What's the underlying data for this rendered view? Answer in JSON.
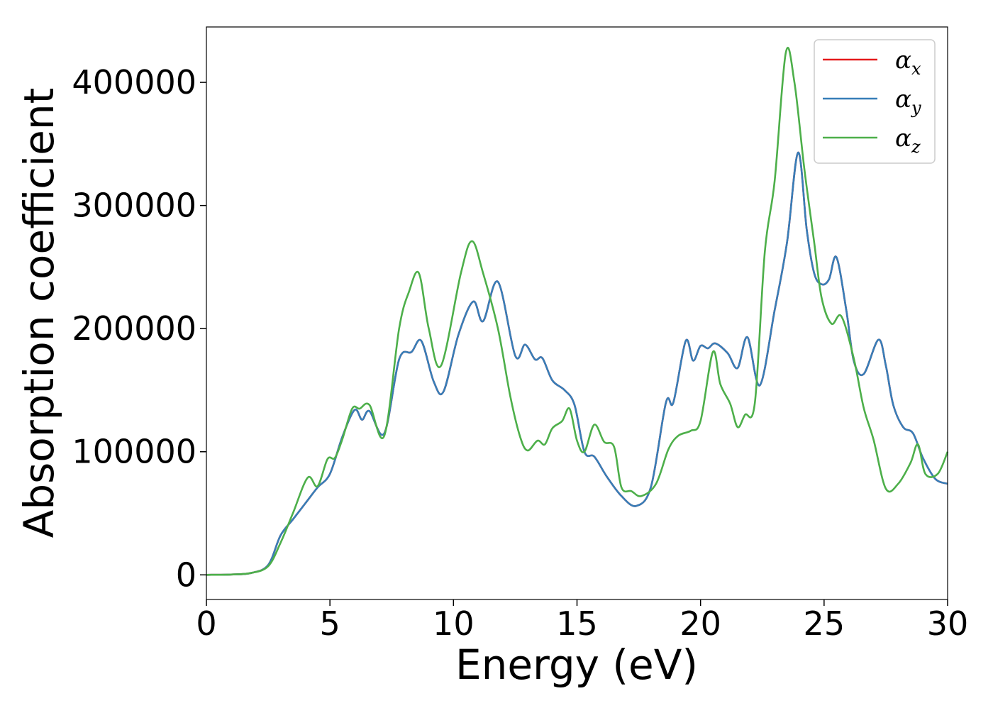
{
  "chart_data": {
    "type": "line",
    "title": "",
    "xlabel": "Energy (eV)",
    "ylabel": "Absorption coefficient",
    "xlim": [
      0,
      30
    ],
    "ylim": [
      -20000,
      445000
    ],
    "xticks": [
      0,
      5,
      10,
      15,
      20,
      25,
      30
    ],
    "yticks": [
      0,
      100000,
      200000,
      300000,
      400000
    ],
    "grid": false,
    "legend_position": "top-right",
    "series": [
      {
        "name": "α_x",
        "label_main": "α",
        "label_sub": "x",
        "color": "#e41a1c",
        "points": [
          [
            0,
            0
          ],
          [
            1,
            300
          ],
          [
            1.8,
            1500
          ],
          [
            2.5,
            8000
          ],
          [
            3.0,
            32000
          ],
          [
            3.5,
            45000
          ],
          [
            4.0,
            58000
          ],
          [
            4.5,
            71000
          ],
          [
            5.0,
            82000
          ],
          [
            5.5,
            112000
          ],
          [
            6.0,
            134000
          ],
          [
            6.3,
            126000
          ],
          [
            6.6,
            133000
          ],
          [
            7.2,
            115000
          ],
          [
            7.8,
            175000
          ],
          [
            8.3,
            181000
          ],
          [
            8.7,
            190000
          ],
          [
            9.2,
            157000
          ],
          [
            9.6,
            149000
          ],
          [
            10.2,
            195000
          ],
          [
            10.8,
            222000
          ],
          [
            11.2,
            206000
          ],
          [
            11.8,
            238000
          ],
          [
            12.5,
            178000
          ],
          [
            12.9,
            187000
          ],
          [
            13.3,
            175000
          ],
          [
            13.6,
            176000
          ],
          [
            14.0,
            158000
          ],
          [
            14.5,
            150000
          ],
          [
            14.9,
            138000
          ],
          [
            15.3,
            100000
          ],
          [
            15.7,
            96000
          ],
          [
            16.2,
            80000
          ],
          [
            16.8,
            64000
          ],
          [
            17.4,
            56000
          ],
          [
            18.0,
            72000
          ],
          [
            18.6,
            140000
          ],
          [
            18.9,
            140000
          ],
          [
            19.4,
            190000
          ],
          [
            19.7,
            174000
          ],
          [
            20.0,
            186000
          ],
          [
            20.3,
            184000
          ],
          [
            20.6,
            188000
          ],
          [
            21.1,
            180000
          ],
          [
            21.5,
            168000
          ],
          [
            21.9,
            193000
          ],
          [
            22.4,
            154000
          ],
          [
            23.0,
            215000
          ],
          [
            23.5,
            270000
          ],
          [
            23.95,
            343000
          ],
          [
            24.3,
            280000
          ],
          [
            24.6,
            245000
          ],
          [
            24.9,
            236000
          ],
          [
            25.2,
            240000
          ],
          [
            25.5,
            258000
          ],
          [
            25.9,
            215000
          ],
          [
            26.2,
            174000
          ],
          [
            26.6,
            163000
          ],
          [
            27.2,
            191000
          ],
          [
            27.5,
            170000
          ],
          [
            27.8,
            138000
          ],
          [
            28.2,
            120000
          ],
          [
            28.6,
            115000
          ],
          [
            29.0,
            95000
          ],
          [
            29.5,
            78000
          ],
          [
            30,
            74000
          ]
        ]
      },
      {
        "name": "α_y",
        "label_main": "α",
        "label_sub": "y",
        "color": "#377eb8",
        "points": [
          [
            0,
            0
          ],
          [
            1,
            300
          ],
          [
            1.8,
            1500
          ],
          [
            2.5,
            8000
          ],
          [
            3.0,
            32000
          ],
          [
            3.5,
            45000
          ],
          [
            4.0,
            58000
          ],
          [
            4.5,
            71000
          ],
          [
            5.0,
            82000
          ],
          [
            5.5,
            112000
          ],
          [
            6.0,
            134000
          ],
          [
            6.3,
            126000
          ],
          [
            6.6,
            133000
          ],
          [
            7.2,
            115000
          ],
          [
            7.8,
            175000
          ],
          [
            8.3,
            181000
          ],
          [
            8.7,
            190000
          ],
          [
            9.2,
            157000
          ],
          [
            9.6,
            149000
          ],
          [
            10.2,
            195000
          ],
          [
            10.8,
            222000
          ],
          [
            11.2,
            206000
          ],
          [
            11.8,
            238000
          ],
          [
            12.5,
            178000
          ],
          [
            12.9,
            187000
          ],
          [
            13.3,
            175000
          ],
          [
            13.6,
            176000
          ],
          [
            14.0,
            158000
          ],
          [
            14.5,
            150000
          ],
          [
            14.9,
            138000
          ],
          [
            15.3,
            100000
          ],
          [
            15.7,
            96000
          ],
          [
            16.2,
            80000
          ],
          [
            16.8,
            64000
          ],
          [
            17.4,
            56000
          ],
          [
            18.0,
            72000
          ],
          [
            18.6,
            140000
          ],
          [
            18.9,
            140000
          ],
          [
            19.4,
            190000
          ],
          [
            19.7,
            174000
          ],
          [
            20.0,
            186000
          ],
          [
            20.3,
            184000
          ],
          [
            20.6,
            188000
          ],
          [
            21.1,
            180000
          ],
          [
            21.5,
            168000
          ],
          [
            21.9,
            193000
          ],
          [
            22.4,
            154000
          ],
          [
            23.0,
            215000
          ],
          [
            23.5,
            270000
          ],
          [
            23.95,
            343000
          ],
          [
            24.3,
            280000
          ],
          [
            24.6,
            245000
          ],
          [
            24.9,
            236000
          ],
          [
            25.2,
            240000
          ],
          [
            25.5,
            258000
          ],
          [
            25.9,
            215000
          ],
          [
            26.2,
            174000
          ],
          [
            26.6,
            163000
          ],
          [
            27.2,
            191000
          ],
          [
            27.5,
            170000
          ],
          [
            27.8,
            138000
          ],
          [
            28.2,
            120000
          ],
          [
            28.6,
            115000
          ],
          [
            29.0,
            95000
          ],
          [
            29.5,
            78000
          ],
          [
            30,
            74000
          ]
        ]
      },
      {
        "name": "α_z",
        "label_main": "α",
        "label_sub": "z",
        "color": "#4daf4a",
        "points": [
          [
            0,
            0
          ],
          [
            1,
            300
          ],
          [
            1.8,
            1500
          ],
          [
            2.5,
            7000
          ],
          [
            3.0,
            26000
          ],
          [
            3.5,
            50000
          ],
          [
            4.1,
            79000
          ],
          [
            4.5,
            72000
          ],
          [
            4.9,
            94000
          ],
          [
            5.2,
            95000
          ],
          [
            5.5,
            110000
          ],
          [
            5.9,
            135000
          ],
          [
            6.2,
            135000
          ],
          [
            6.6,
            138000
          ],
          [
            7.2,
            113000
          ],
          [
            7.8,
            200000
          ],
          [
            8.2,
            230000
          ],
          [
            8.6,
            245000
          ],
          [
            9.0,
            200000
          ],
          [
            9.5,
            170000
          ],
          [
            10.3,
            245000
          ],
          [
            10.75,
            271000
          ],
          [
            11.2,
            245000
          ],
          [
            11.8,
            200000
          ],
          [
            12.3,
            145000
          ],
          [
            12.7,
            112000
          ],
          [
            13.0,
            101000
          ],
          [
            13.4,
            109000
          ],
          [
            13.7,
            106000
          ],
          [
            14.0,
            119000
          ],
          [
            14.4,
            125000
          ],
          [
            14.7,
            135000
          ],
          [
            15.0,
            109000
          ],
          [
            15.3,
            100000
          ],
          [
            15.7,
            122000
          ],
          [
            16.1,
            108000
          ],
          [
            16.5,
            104000
          ],
          [
            16.8,
            71000
          ],
          [
            17.2,
            68000
          ],
          [
            17.6,
            64000
          ],
          [
            18.2,
            74000
          ],
          [
            18.7,
            102000
          ],
          [
            19.1,
            113000
          ],
          [
            19.6,
            117000
          ],
          [
            20.0,
            125000
          ],
          [
            20.5,
            181000
          ],
          [
            20.8,
            155000
          ],
          [
            21.2,
            139000
          ],
          [
            21.5,
            120000
          ],
          [
            21.8,
            130000
          ],
          [
            22.2,
            140000
          ],
          [
            22.6,
            262000
          ],
          [
            23.0,
            320000
          ],
          [
            23.45,
            424000
          ],
          [
            23.8,
            400000
          ],
          [
            24.2,
            330000
          ],
          [
            24.6,
            270000
          ],
          [
            24.9,
            225000
          ],
          [
            25.3,
            204000
          ],
          [
            25.7,
            210000
          ],
          [
            26.2,
            176000
          ],
          [
            26.6,
            136000
          ],
          [
            27.0,
            110000
          ],
          [
            27.5,
            70000
          ],
          [
            28.0,
            74000
          ],
          [
            28.5,
            91000
          ],
          [
            28.8,
            106000
          ],
          [
            29.1,
            82000
          ],
          [
            29.6,
            82000
          ],
          [
            30,
            100000
          ]
        ]
      }
    ]
  }
}
